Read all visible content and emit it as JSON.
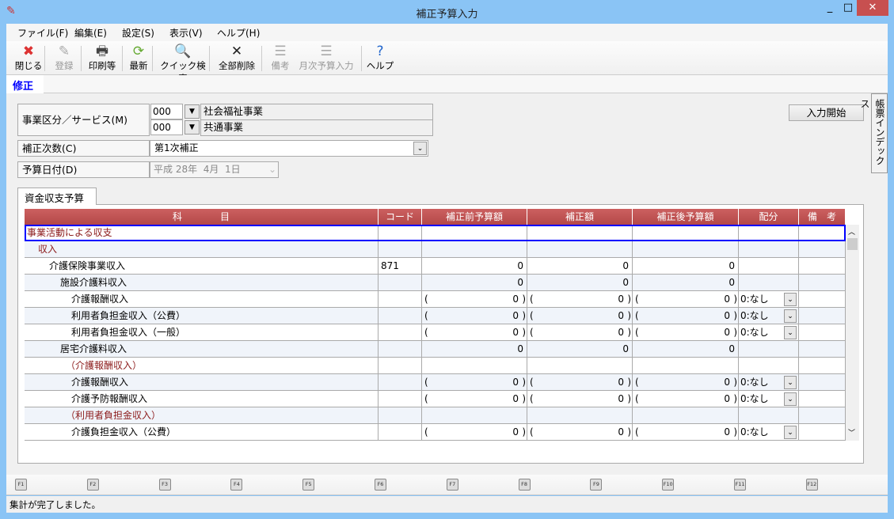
{
  "window": {
    "title": "補正予算入力",
    "min": "_",
    "max": "□",
    "close": "✕",
    "close_color": "#c75050"
  },
  "menu": [
    "ファイル(F)",
    "編集(E)",
    "設定(S)",
    "表示(V)",
    "ヘルプ(H)"
  ],
  "toolbar": [
    {
      "label": "閉じる",
      "icon": "close-icon",
      "glyph": "✖",
      "color": "#d33",
      "enabled": true
    },
    {
      "label": "登録",
      "icon": "register-icon",
      "glyph": "✎",
      "color": "#aaa",
      "enabled": false
    },
    {
      "label": "印刷等",
      "icon": "printer-icon",
      "glyph": "🖶",
      "color": "#444",
      "enabled": true
    },
    {
      "label": "最新",
      "icon": "refresh-icon",
      "glyph": "⟳",
      "color": "#6a3",
      "enabled": true
    },
    {
      "label": "クイック検索",
      "icon": "search-icon",
      "glyph": "🔍",
      "color": "#446",
      "enabled": true
    },
    {
      "label": "全部削除",
      "icon": "delete-all-icon",
      "glyph": "✕",
      "color": "#222",
      "enabled": true
    },
    {
      "label": "備考",
      "icon": "notes-icon",
      "glyph": "☰",
      "color": "#aaa",
      "enabled": false
    },
    {
      "label": "月次予算入力",
      "icon": "monthly-budget-icon",
      "glyph": "☰",
      "color": "#aaa",
      "enabled": false
    },
    {
      "label": "ヘルプ",
      "icon": "help-icon",
      "glyph": "?",
      "color": "#26c",
      "enabled": true
    }
  ],
  "mode_tab": "修正",
  "form": {
    "division_label": "事業区分／サービス(M)",
    "division_code": "000",
    "division_name": "社会福祉事業",
    "service_code": "000",
    "service_name": "共通事業",
    "revision_label": "補正次数(C)",
    "revision_value": "第1次補正",
    "date_label": "予算日付(D)",
    "date_value": "平成 28年  4月  1日",
    "start_button": "入力開始",
    "side_tab": "帳票インデックス"
  },
  "grid": {
    "tab": "資金収支予算",
    "columns": [
      "科　　　　目",
      "コード",
      "補正前予算額",
      "補正額",
      "補正後予算額",
      "配分",
      "備　考"
    ],
    "rows": [
      {
        "name": "事業活動による収支",
        "level": 0,
        "red": true,
        "code": "",
        "vals": [
          "",
          "",
          ""
        ],
        "alloc": ""
      },
      {
        "name": "収入",
        "level": 1,
        "red": true,
        "code": "",
        "vals": [
          "",
          "",
          ""
        ],
        "alloc": ""
      },
      {
        "name": "介護保険事業収入",
        "level": 2,
        "code": "871",
        "vals": [
          "0",
          "0",
          "0"
        ],
        "alloc": ""
      },
      {
        "name": "施設介護料収入",
        "level": 3,
        "code": "",
        "vals": [
          "0",
          "0",
          "0"
        ],
        "alloc": ""
      },
      {
        "name": "介護報酬収入",
        "level": 4,
        "code": "",
        "paren": true,
        "vals": [
          "0",
          "0",
          "0"
        ],
        "alloc": "0:なし"
      },
      {
        "name": "利用者負担金収入（公費）",
        "level": 4,
        "code": "",
        "paren": true,
        "vals": [
          "0",
          "0",
          "0"
        ],
        "alloc": "0:なし"
      },
      {
        "name": "利用者負担金収入（一般）",
        "level": 4,
        "code": "",
        "paren": true,
        "vals": [
          "0",
          "0",
          "0"
        ],
        "alloc": "0:なし"
      },
      {
        "name": "居宅介護料収入",
        "level": 3,
        "code": "",
        "vals": [
          "0",
          "0",
          "0"
        ],
        "alloc": ""
      },
      {
        "name": "（介護報酬収入）",
        "level": 3.5,
        "red": true,
        "code": "",
        "vals": [
          "",
          "",
          ""
        ],
        "alloc": ""
      },
      {
        "name": "介護報酬収入",
        "level": 4,
        "code": "",
        "paren": true,
        "vals": [
          "0",
          "0",
          "0"
        ],
        "alloc": "0:なし"
      },
      {
        "name": "介護予防報酬収入",
        "level": 4,
        "code": "",
        "paren": true,
        "vals": [
          "0",
          "0",
          "0"
        ],
        "alloc": "0:なし"
      },
      {
        "name": "（利用者負担金収入）",
        "level": 3.5,
        "red": true,
        "code": "",
        "vals": [
          "",
          "",
          ""
        ],
        "alloc": ""
      },
      {
        "name": "介護負担金収入（公費）",
        "level": 4,
        "code": "",
        "paren": true,
        "vals": [
          "0",
          "0",
          "0"
        ],
        "alloc": "0:なし"
      }
    ]
  },
  "fkeys": [
    "F1",
    "F2",
    "F3",
    "F4",
    "F5",
    "F6",
    "F7",
    "F8",
    "F9",
    "F10",
    "F11",
    "F12"
  ],
  "status": "集計が完了しました。"
}
